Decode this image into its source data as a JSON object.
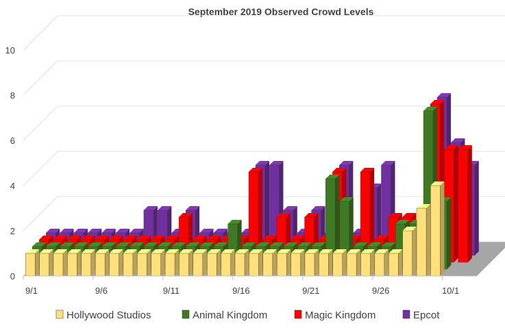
{
  "chart_data": {
    "type": "bar",
    "title": "September 2019 Observed Crowd Levels",
    "xlabel": "",
    "ylabel": "",
    "ylim": [
      0,
      11
    ],
    "yticks": [
      0,
      2,
      4,
      6,
      8,
      10
    ],
    "grid": true,
    "legend": "bottom",
    "categories": [
      "9/1",
      "9/2",
      "9/3",
      "9/4",
      "9/5",
      "9/6",
      "9/7",
      "9/8",
      "9/9",
      "9/10",
      "9/11",
      "9/12",
      "9/13",
      "9/14",
      "9/15",
      "9/16",
      "9/17",
      "9/18",
      "9/19",
      "9/20",
      "9/21",
      "9/22",
      "9/23",
      "9/24",
      "9/25",
      "9/26",
      "9/27",
      "9/28",
      "9/29",
      "9/30",
      "10/1"
    ],
    "tick_labels": [
      "9/1",
      "9/6",
      "9/11",
      "9/16",
      "9/21",
      "9/26",
      "10/1"
    ],
    "series": [
      {
        "name": "Hollywood Studios",
        "color": "#FFE07A",
        "values": [
          1,
          1,
          1,
          1,
          1,
          1,
          1,
          1,
          1,
          1,
          1,
          1,
          1,
          1,
          1,
          1,
          1,
          1,
          1,
          1,
          1,
          1,
          1,
          1,
          1,
          1,
          1,
          2,
          3,
          4,
          0
        ]
      },
      {
        "name": "Animal Kingdom",
        "color": "#3E7A22",
        "values": [
          1,
          1,
          1,
          1,
          1,
          1,
          1,
          1,
          1,
          1,
          1,
          1,
          1,
          1,
          2,
          1,
          1,
          1,
          1,
          1,
          1,
          4,
          3,
          1,
          1,
          1,
          2,
          2,
          7,
          3,
          0
        ]
      },
      {
        "name": "Magic Kingdom",
        "color": "#FF0000",
        "values": [
          1,
          1,
          1,
          1,
          1,
          1,
          1,
          1,
          1,
          1,
          2,
          1,
          1,
          1,
          1,
          4,
          1,
          2,
          1,
          2,
          1,
          4,
          1,
          4,
          1,
          2,
          2,
          0,
          7,
          5,
          5
        ]
      },
      {
        "name": "Epcot",
        "color": "#7030A0",
        "values": [
          1,
          1,
          1,
          1,
          1,
          1,
          1,
          2,
          2,
          1,
          2,
          1,
          1,
          1,
          1,
          4,
          4,
          2,
          1,
          2,
          1,
          4,
          1,
          3,
          4,
          1,
          0,
          0,
          7,
          5,
          4
        ]
      }
    ]
  }
}
